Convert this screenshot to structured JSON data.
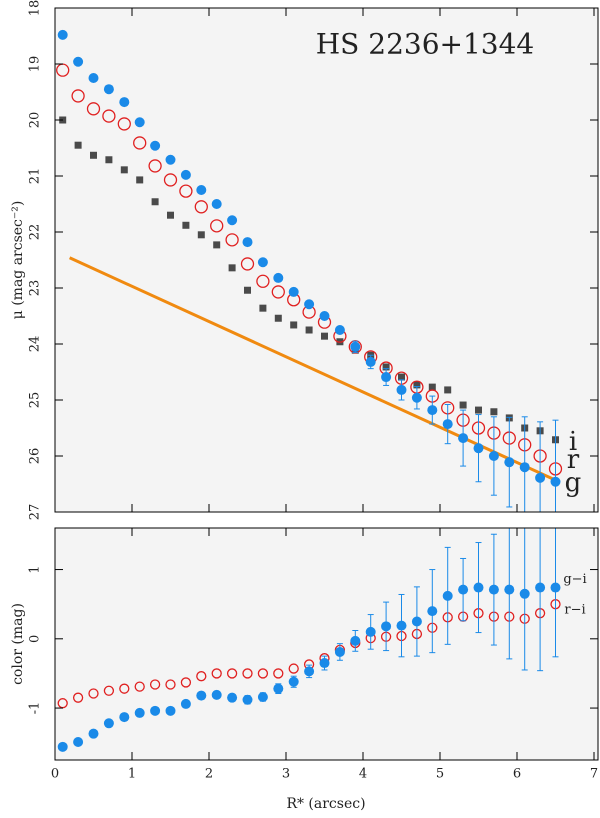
{
  "chart_data": [
    {
      "type": "scatter",
      "title": "HS 2236+1344",
      "ylabel": "μ (mag arcsec⁻²)",
      "x": [
        0.1,
        0.3,
        0.5,
        0.7,
        0.9,
        1.1,
        1.3,
        1.5,
        1.7,
        1.9,
        2.1,
        2.3,
        2.5,
        2.7,
        2.9,
        3.1,
        3.3,
        3.5,
        3.7,
        3.9,
        4.1,
        4.3,
        4.5,
        4.7,
        4.9,
        5.1,
        5.3,
        5.5,
        5.7,
        5.9,
        6.1,
        6.3,
        6.5
      ],
      "xlim": [
        0,
        7
      ],
      "xticks": [
        0,
        1,
        2,
        3,
        4,
        5,
        6,
        7
      ],
      "ylim": [
        27,
        18
      ],
      "yticks": [
        18,
        19,
        20,
        21,
        22,
        23,
        24,
        25,
        26,
        27
      ],
      "series": [
        {
          "name": "i",
          "color": "#4a4a4a",
          "marker": "square",
          "values": [
            20.0,
            20.45,
            20.63,
            20.71,
            20.89,
            21.07,
            21.46,
            21.7,
            21.88,
            22.05,
            22.23,
            22.64,
            23.04,
            23.36,
            23.54,
            23.66,
            23.75,
            23.86,
            23.96,
            24.11,
            24.2,
            24.41,
            24.59,
            24.73,
            24.77,
            24.82,
            25.09,
            25.18,
            25.21,
            25.32,
            25.5,
            25.55,
            25.71
          ]
        },
        {
          "name": "r",
          "color": "#e02020",
          "marker": "open-circle",
          "values": [
            19.11,
            19.57,
            19.8,
            19.93,
            20.07,
            20.41,
            20.82,
            21.07,
            21.27,
            21.55,
            21.89,
            22.14,
            22.57,
            22.88,
            23.07,
            23.21,
            23.43,
            23.61,
            23.86,
            24.05,
            24.23,
            24.43,
            24.61,
            24.77,
            24.93,
            25.14,
            25.36,
            25.5,
            25.59,
            25.68,
            25.8,
            26.0,
            26.23
          ]
        },
        {
          "name": "g",
          "color": "#1a8ae8",
          "marker": "filled-circle",
          "values": [
            18.48,
            18.96,
            19.25,
            19.45,
            19.68,
            20.04,
            20.46,
            20.71,
            20.98,
            21.25,
            21.5,
            21.79,
            22.18,
            22.54,
            22.82,
            23.07,
            23.29,
            23.5,
            23.75,
            24.05,
            24.32,
            24.59,
            24.82,
            24.96,
            25.18,
            25.43,
            25.68,
            25.86,
            26.0,
            26.11,
            26.2,
            26.39,
            26.46
          ],
          "errors": [
            null,
            null,
            null,
            null,
            null,
            null,
            null,
            null,
            null,
            null,
            null,
            null,
            null,
            null,
            null,
            null,
            null,
            null,
            null,
            0.1,
            0.12,
            0.15,
            0.18,
            0.2,
            0.25,
            0.35,
            0.5,
            0.6,
            0.7,
            0.8,
            0.9,
            1.0,
            1.1
          ]
        }
      ],
      "lines": [
        {
          "color": "#f08a10",
          "x": [
            0.19,
            6.5
          ],
          "values": [
            22.46,
            26.43
          ]
        }
      ]
    },
    {
      "type": "scatter",
      "ylabel": "color (mag)",
      "xlabel": "R* (arcsec)",
      "x": [
        0.1,
        0.3,
        0.5,
        0.7,
        0.9,
        1.1,
        1.3,
        1.5,
        1.7,
        1.9,
        2.1,
        2.3,
        2.5,
        2.7,
        2.9,
        3.1,
        3.3,
        3.5,
        3.7,
        3.9,
        4.1,
        4.3,
        4.5,
        4.7,
        4.9,
        5.1,
        5.3,
        5.5,
        5.7,
        5.9,
        6.1,
        6.3,
        6.5
      ],
      "xlim": [
        0,
        7
      ],
      "xticks": [
        0,
        1,
        2,
        3,
        4,
        5,
        6,
        7
      ],
      "ylim": [
        -1.75,
        1.6
      ],
      "yticks": [
        -1,
        0,
        1
      ],
      "series": [
        {
          "name": "r−i",
          "color": "#e02020",
          "marker": "open-circle",
          "values": [
            -0.93,
            -0.85,
            -0.79,
            -0.75,
            -0.72,
            -0.69,
            -0.66,
            -0.66,
            -0.63,
            -0.54,
            -0.5,
            -0.5,
            -0.5,
            -0.5,
            -0.5,
            -0.43,
            -0.37,
            -0.28,
            -0.16,
            -0.06,
            0.01,
            0.03,
            0.04,
            0.07,
            0.16,
            0.31,
            0.32,
            0.37,
            0.32,
            0.32,
            0.29,
            0.37,
            0.5
          ]
        },
        {
          "name": "g−i",
          "color": "#1a8ae8",
          "marker": "filled-circle",
          "values": [
            -1.56,
            -1.49,
            -1.37,
            -1.22,
            -1.13,
            -1.07,
            -1.04,
            -1.04,
            -0.94,
            -0.82,
            -0.81,
            -0.85,
            -0.88,
            -0.84,
            -0.72,
            -0.62,
            -0.47,
            -0.35,
            -0.19,
            -0.03,
            0.1,
            0.18,
            0.19,
            0.25,
            0.4,
            0.62,
            0.71,
            0.74,
            0.71,
            0.71,
            0.65,
            0.74,
            0.74
          ],
          "errors": [
            null,
            null,
            null,
            null,
            null,
            null,
            null,
            null,
            null,
            null,
            0.05,
            0.05,
            0.06,
            0.06,
            0.07,
            0.08,
            0.09,
            0.1,
            0.12,
            0.15,
            0.25,
            0.35,
            0.45,
            0.5,
            0.6,
            0.7,
            0.45,
            0.65,
            0.8,
            1.0,
            1.1,
            1.2,
            1.0
          ]
        }
      ]
    }
  ]
}
